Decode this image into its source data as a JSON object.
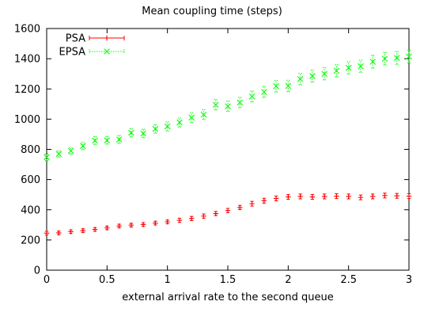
{
  "chart_data": {
    "type": "scatter",
    "title": "Mean coupling time (steps)",
    "xlabel": "external arrival rate to the second queue",
    "ylabel": "",
    "xlim": [
      0,
      3
    ],
    "ylim": [
      0,
      1600
    ],
    "xticks": [
      0,
      0.5,
      1,
      1.5,
      2,
      2.5,
      3
    ],
    "xtick_labels": [
      "0",
      "0.5",
      "1",
      "1.5",
      "2",
      "2.5",
      "3"
    ],
    "yticks": [
      0,
      200,
      400,
      600,
      800,
      1000,
      1200,
      1400,
      1600
    ],
    "ytick_labels": [
      "0",
      "200",
      "400",
      "600",
      "800",
      "1000",
      "1200",
      "1400",
      "1600"
    ],
    "grid": false,
    "legend_position": "top-left",
    "x": [
      0,
      0.1,
      0.2,
      0.3,
      0.4,
      0.5,
      0.6,
      0.7,
      0.8,
      0.9,
      1.0,
      1.1,
      1.2,
      1.3,
      1.4,
      1.5,
      1.6,
      1.7,
      1.8,
      1.9,
      2.0,
      2.1,
      2.2,
      2.3,
      2.4,
      2.5,
      2.6,
      2.7,
      2.8,
      2.9,
      3.0
    ],
    "series": [
      {
        "name": "PSA",
        "marker": "+",
        "color": "#ff0000",
        "line_style": "solid",
        "values": [
          245,
          247,
          255,
          262,
          270,
          280,
          292,
          298,
          302,
          312,
          320,
          330,
          342,
          358,
          375,
          395,
          415,
          440,
          460,
          475,
          485,
          488,
          485,
          488,
          490,
          488,
          482,
          488,
          494,
          492,
          490
        ],
        "error": [
          12,
          12,
          12,
          12,
          12,
          12,
          12,
          12,
          12,
          12,
          12,
          14,
          14,
          14,
          14,
          14,
          14,
          16,
          16,
          16,
          16,
          16,
          16,
          16,
          16,
          16,
          16,
          16,
          16,
          16,
          16
        ]
      },
      {
        "name": "EPSA",
        "marker": "x",
        "color": "#00ff00",
        "line_style": "dashed",
        "values": [
          748,
          770,
          790,
          822,
          858,
          860,
          865,
          910,
          905,
          935,
          952,
          978,
          1010,
          1030,
          1095,
          1085,
          1110,
          1150,
          1180,
          1218,
          1220,
          1265,
          1285,
          1300,
          1320,
          1340,
          1350,
          1380,
          1400,
          1405,
          1415
        ],
        "error": [
          22,
          22,
          22,
          24,
          26,
          26,
          26,
          28,
          28,
          28,
          30,
          30,
          32,
          32,
          34,
          34,
          34,
          36,
          36,
          38,
          38,
          38,
          40,
          40,
          40,
          40,
          40,
          42,
          42,
          42,
          42
        ]
      }
    ]
  }
}
